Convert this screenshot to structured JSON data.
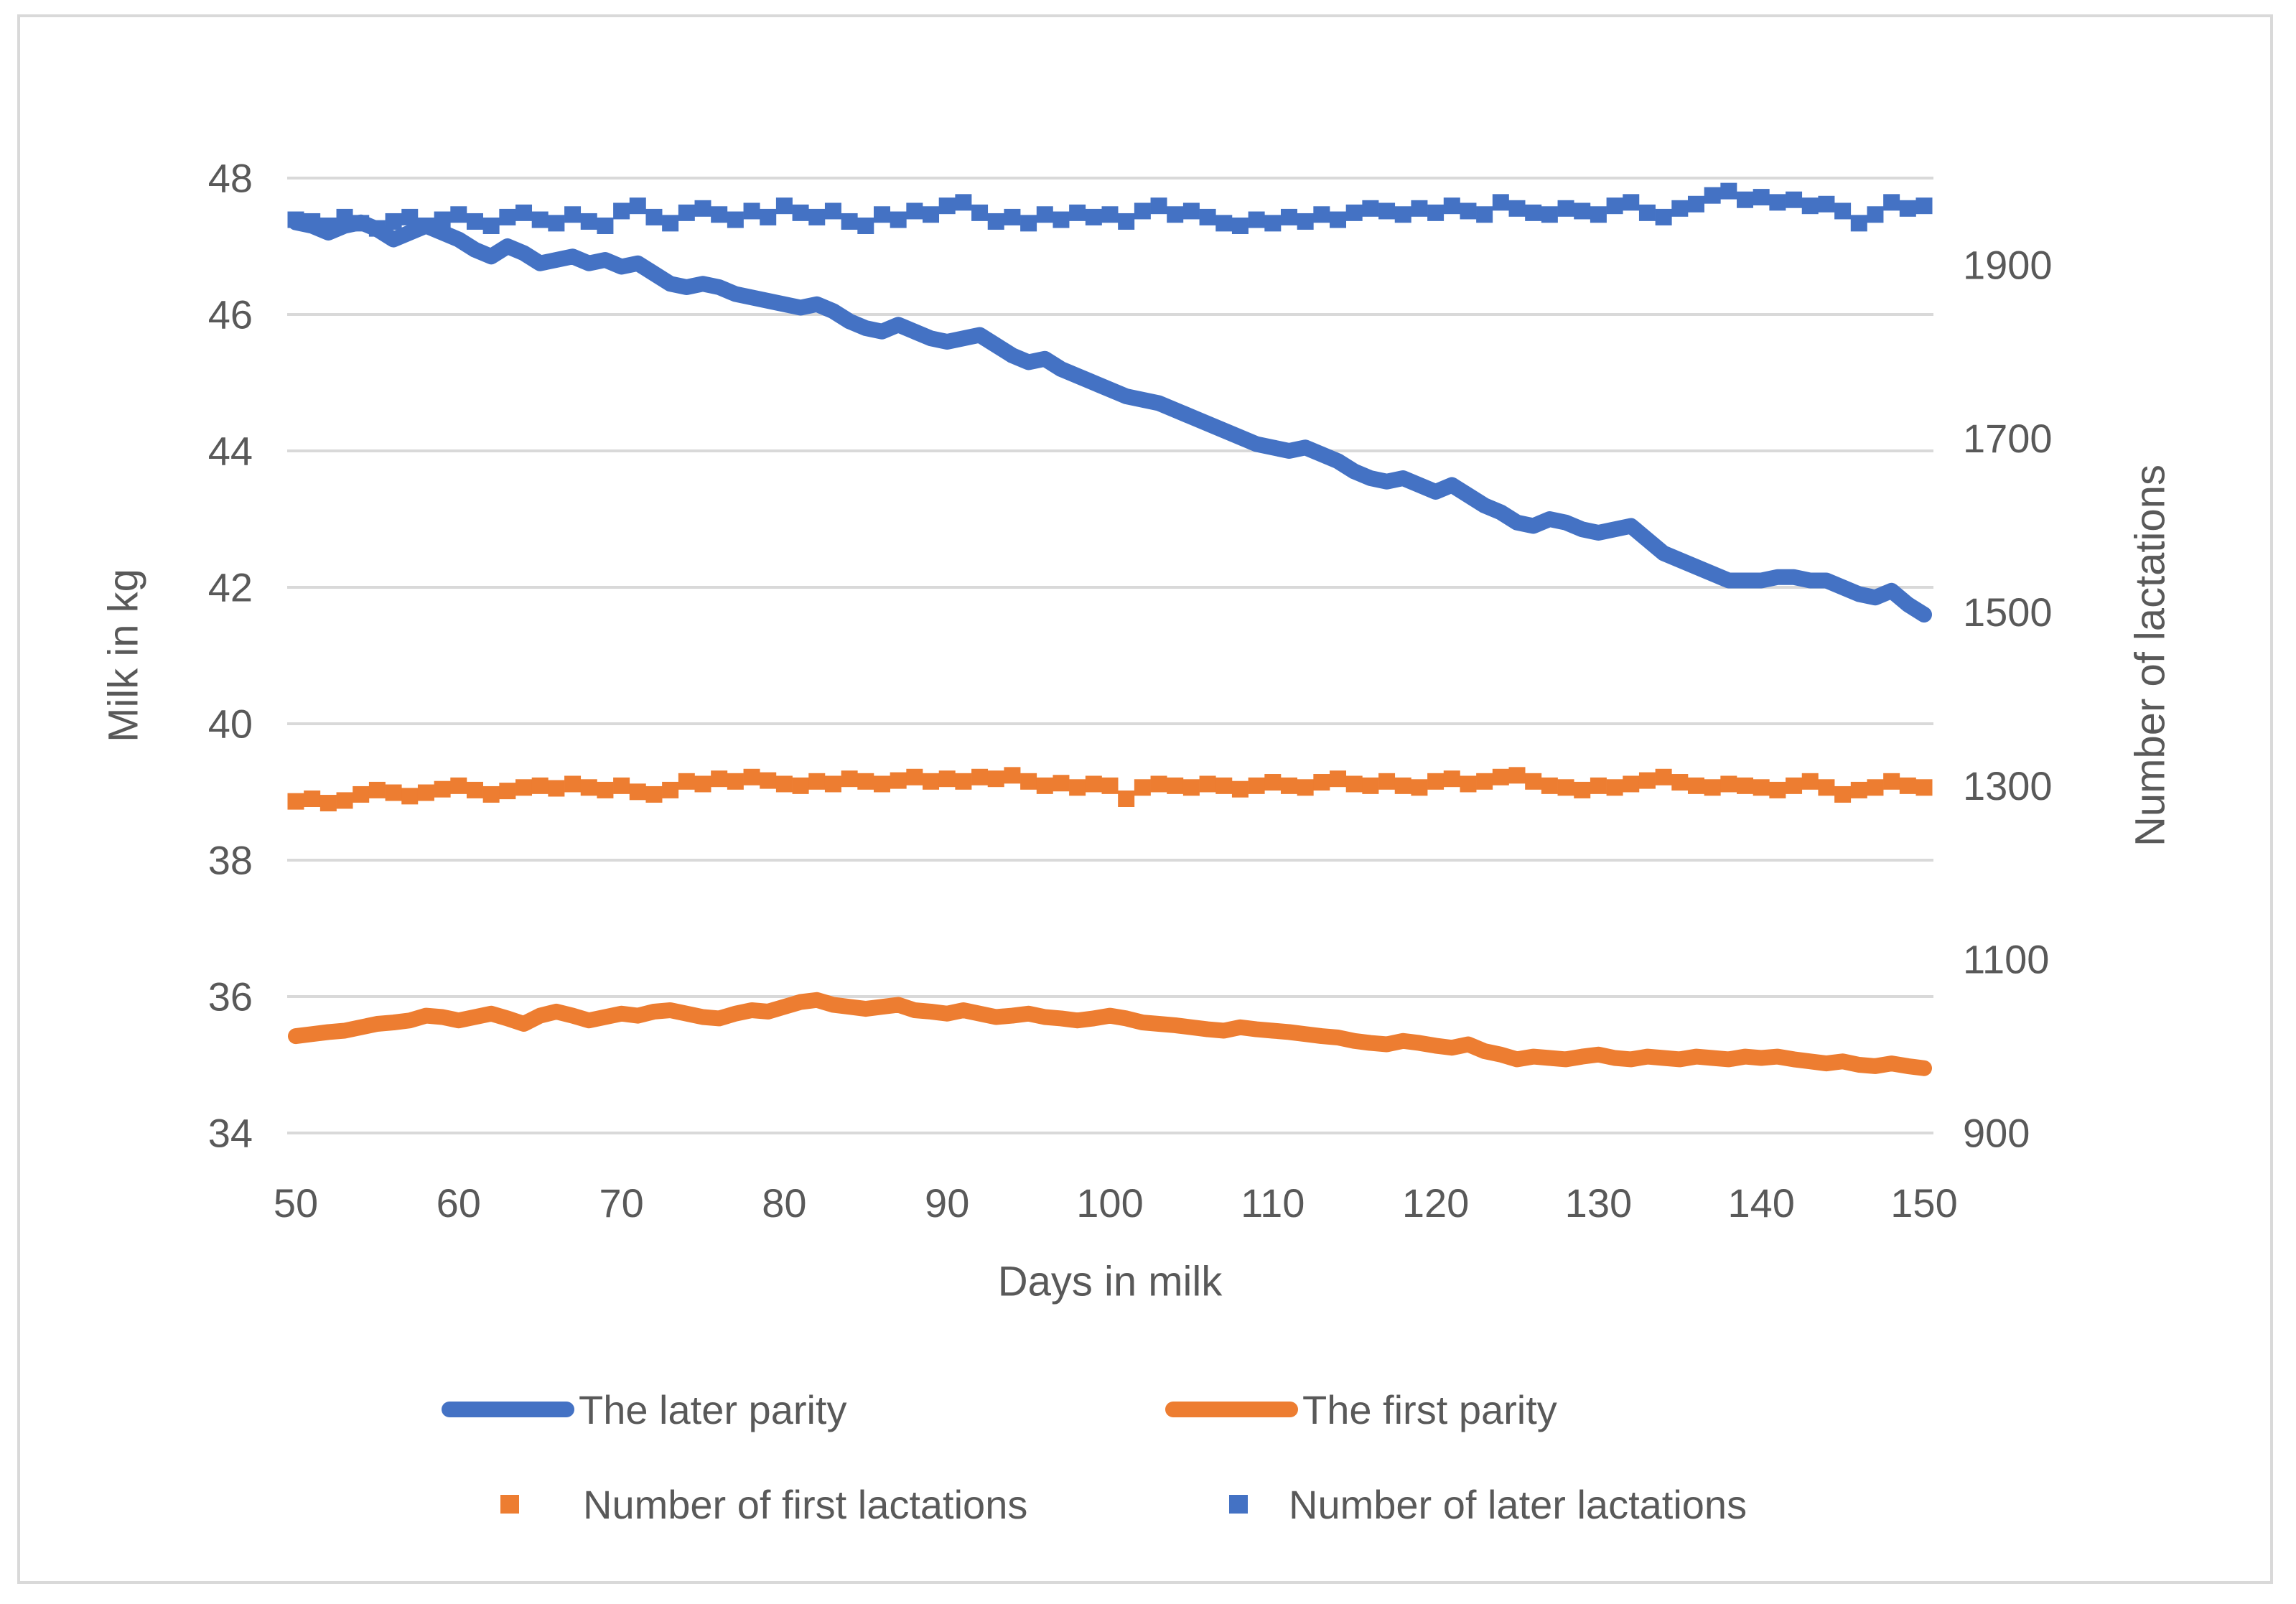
{
  "figure": {
    "background": "#FFFFFF",
    "border_color": "#D9D9D9"
  },
  "colors": {
    "blue": "#4472C4",
    "orange": "#ED7D31",
    "gridline": "#D9D9D9",
    "text": "#595959"
  },
  "chart_data": {
    "type": "line",
    "grid": "horizontal",
    "legend_position": "bottom",
    "x_axis": {
      "title": "Days in milk",
      "min": 50,
      "max": 150,
      "ticks": [
        50,
        60,
        70,
        80,
        90,
        100,
        110,
        120,
        130,
        140,
        150
      ]
    },
    "left_axis": {
      "title": "Milk in kg",
      "min": 34,
      "max": 48,
      "ticks": [
        48,
        46,
        44,
        42,
        40,
        38,
        36,
        34
      ]
    },
    "right_axis": {
      "title": "Number of lactations",
      "min": 900,
      "max": 2000,
      "ticks": [
        1900,
        1700,
        1500,
        1300,
        1100,
        900
      ]
    },
    "x": [
      50,
      51,
      52,
      53,
      54,
      55,
      56,
      57,
      58,
      59,
      60,
      61,
      62,
      63,
      64,
      65,
      66,
      67,
      68,
      69,
      70,
      71,
      72,
      73,
      74,
      75,
      76,
      77,
      78,
      79,
      80,
      81,
      82,
      83,
      84,
      85,
      86,
      87,
      88,
      89,
      90,
      91,
      92,
      93,
      94,
      95,
      96,
      97,
      98,
      99,
      100,
      101,
      102,
      103,
      104,
      105,
      106,
      107,
      108,
      109,
      110,
      111,
      112,
      113,
      114,
      115,
      116,
      117,
      118,
      119,
      120,
      121,
      122,
      123,
      124,
      125,
      126,
      127,
      128,
      129,
      130,
      131,
      132,
      133,
      134,
      135,
      136,
      137,
      138,
      139,
      140,
      141,
      142,
      143,
      144,
      145,
      146,
      147,
      148,
      149,
      150
    ],
    "series": [
      {
        "name": "The later parity",
        "type": "line",
        "axis": "left",
        "color_key": "blue",
        "values": [
          47.35,
          47.3,
          47.2,
          47.3,
          47.35,
          47.25,
          47.1,
          47.2,
          47.3,
          47.2,
          47.1,
          46.95,
          46.85,
          47.0,
          46.9,
          46.75,
          46.8,
          46.85,
          46.75,
          46.8,
          46.7,
          46.75,
          46.6,
          46.45,
          46.4,
          46.45,
          46.4,
          46.3,
          46.25,
          46.2,
          46.15,
          46.1,
          46.15,
          46.05,
          45.9,
          45.8,
          45.75,
          45.85,
          45.75,
          45.65,
          45.6,
          45.65,
          45.7,
          45.55,
          45.4,
          45.3,
          45.35,
          45.2,
          45.1,
          45.0,
          44.9,
          44.8,
          44.75,
          44.7,
          44.6,
          44.5,
          44.4,
          44.3,
          44.2,
          44.1,
          44.05,
          44.0,
          44.05,
          43.95,
          43.85,
          43.7,
          43.6,
          43.55,
          43.6,
          43.5,
          43.4,
          43.5,
          43.35,
          43.2,
          43.1,
          42.95,
          42.9,
          43.0,
          42.95,
          42.85,
          42.8,
          42.85,
          42.9,
          42.7,
          42.5,
          42.4,
          42.3,
          42.2,
          42.1,
          42.1,
          42.1,
          42.15,
          42.15,
          42.1,
          42.1,
          42.0,
          41.9,
          41.85,
          41.95,
          41.75,
          41.6
        ]
      },
      {
        "name": "The first parity",
        "type": "line",
        "axis": "left",
        "color_key": "orange",
        "values": [
          35.42,
          35.45,
          35.48,
          35.5,
          35.55,
          35.6,
          35.62,
          35.65,
          35.72,
          35.7,
          35.65,
          35.7,
          35.75,
          35.68,
          35.6,
          35.72,
          35.78,
          35.72,
          35.65,
          35.7,
          35.75,
          35.72,
          35.78,
          35.8,
          35.75,
          35.7,
          35.68,
          35.75,
          35.8,
          35.78,
          35.85,
          35.92,
          35.95,
          35.88,
          35.85,
          35.82,
          35.85,
          35.88,
          35.8,
          35.78,
          35.75,
          35.8,
          35.75,
          35.7,
          35.72,
          35.75,
          35.7,
          35.68,
          35.65,
          35.68,
          35.72,
          35.68,
          35.62,
          35.6,
          35.58,
          35.55,
          35.52,
          35.5,
          35.55,
          35.52,
          35.5,
          35.48,
          35.45,
          35.42,
          35.4,
          35.35,
          35.32,
          35.3,
          35.35,
          35.32,
          35.28,
          35.25,
          35.3,
          35.2,
          35.15,
          35.08,
          35.12,
          35.1,
          35.08,
          35.12,
          35.15,
          35.1,
          35.08,
          35.12,
          35.1,
          35.08,
          35.12,
          35.1,
          35.08,
          35.12,
          35.1,
          35.12,
          35.08,
          35.05,
          35.02,
          35.05,
          35.0,
          34.98,
          35.02,
          34.98,
          34.95
        ]
      },
      {
        "name": "Number of first lactations",
        "type": "markers",
        "axis": "right",
        "color_key": "orange",
        "values": [
          1282,
          1285,
          1280,
          1283,
          1290,
          1295,
          1292,
          1288,
          1292,
          1296,
          1300,
          1295,
          1290,
          1294,
          1298,
          1300,
          1297,
          1302,
          1298,
          1295,
          1300,
          1293,
          1290,
          1295,
          1305,
          1302,
          1308,
          1305,
          1310,
          1306,
          1302,
          1300,
          1305,
          1302,
          1308,
          1305,
          1302,
          1306,
          1310,
          1305,
          1308,
          1305,
          1310,
          1308,
          1312,
          1305,
          1300,
          1303,
          1298,
          1302,
          1300,
          1285,
          1298,
          1302,
          1300,
          1298,
          1302,
          1300,
          1296,
          1300,
          1304,
          1300,
          1298,
          1304,
          1308,
          1302,
          1300,
          1305,
          1300,
          1298,
          1305,
          1308,
          1302,
          1305,
          1310,
          1312,
          1305,
          1300,
          1298,
          1295,
          1300,
          1298,
          1302,
          1306,
          1310,
          1304,
          1300,
          1298,
          1302,
          1300,
          1298,
          1295,
          1300,
          1305,
          1298,
          1290,
          1295,
          1298,
          1305,
          1300,
          1298
        ]
      },
      {
        "name": "Number of later lactations",
        "type": "markers",
        "axis": "right",
        "color_key": "blue",
        "values": [
          1952,
          1950,
          1945,
          1955,
          1948,
          1942,
          1950,
          1955,
          1945,
          1952,
          1958,
          1950,
          1945,
          1955,
          1960,
          1952,
          1948,
          1958,
          1950,
          1945,
          1962,
          1968,
          1955,
          1948,
          1960,
          1965,
          1958,
          1952,
          1962,
          1955,
          1968,
          1960,
          1955,
          1962,
          1950,
          1945,
          1958,
          1952,
          1962,
          1958,
          1968,
          1972,
          1960,
          1950,
          1955,
          1948,
          1958,
          1952,
          1960,
          1955,
          1958,
          1950,
          1962,
          1968,
          1958,
          1962,
          1955,
          1948,
          1945,
          1952,
          1948,
          1955,
          1950,
          1958,
          1952,
          1960,
          1965,
          1962,
          1958,
          1965,
          1960,
          1968,
          1962,
          1958,
          1972,
          1965,
          1960,
          1958,
          1965,
          1962,
          1958,
          1968,
          1972,
          1960,
          1955,
          1965,
          1970,
          1980,
          1985,
          1975,
          1978,
          1972,
          1975,
          1968,
          1970,
          1962,
          1948,
          1958,
          1972,
          1965,
          1968
        ]
      }
    ]
  }
}
